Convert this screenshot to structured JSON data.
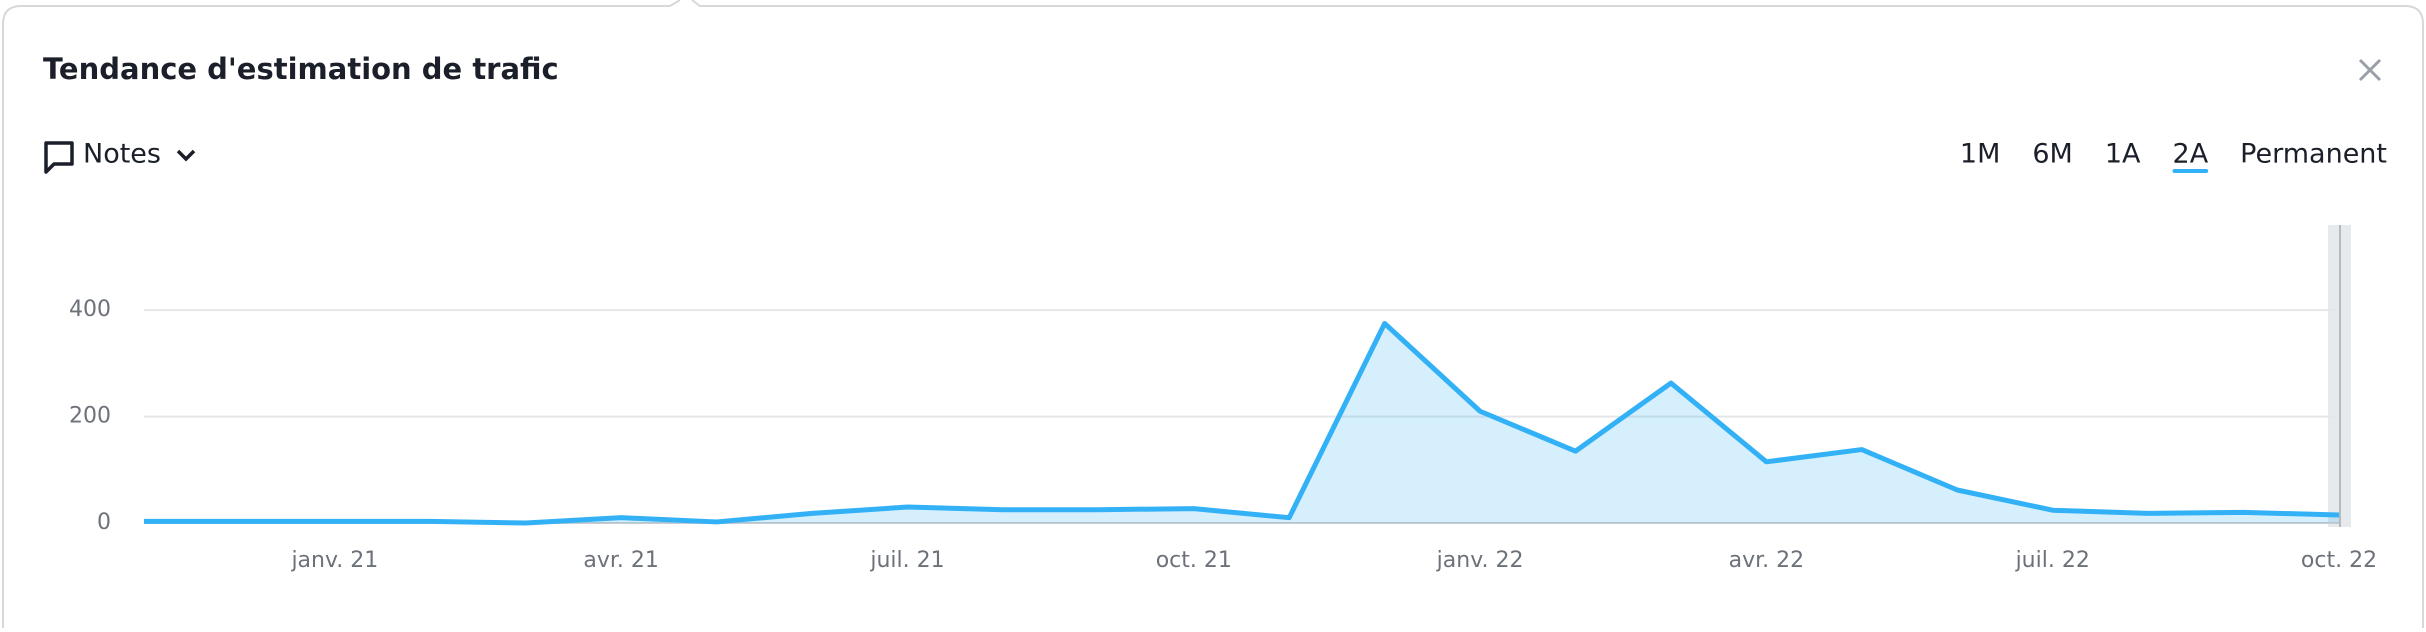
{
  "chart_data": {
    "type": "line",
    "title": "Tendance d'estimation de trafic",
    "x": [
      "2020-11",
      "2020-12",
      "2021-01",
      "2021-02",
      "2021-03",
      "2021-04",
      "2021-05",
      "2021-06",
      "2021-07",
      "2021-08",
      "2021-09",
      "2021-10",
      "2021-11",
      "2021-12",
      "2022-01",
      "2022-02",
      "2022-03",
      "2022-04",
      "2022-05",
      "2022-06",
      "2022-07",
      "2022-08",
      "2022-09",
      "2022-10"
    ],
    "series": [
      {
        "color": "#33b1f6",
        "values": [
          3,
          3,
          3,
          3,
          0,
          10,
          2,
          18,
          30,
          25,
          25,
          27,
          10,
          375,
          210,
          135,
          263,
          115,
          138,
          62,
          24,
          18,
          20,
          15
        ]
      }
    ],
    "ylim": [
      0,
      560
    ],
    "yticks": [
      0,
      200,
      400
    ],
    "grid": true,
    "xticks": [
      {
        "value": "2021-01",
        "label": "janv. 21"
      },
      {
        "value": "2021-04",
        "label": "avr. 21"
      },
      {
        "value": "2021-07",
        "label": "juil. 21"
      },
      {
        "value": "2021-10",
        "label": "oct. 21"
      },
      {
        "value": "2022-01",
        "label": "janv. 22"
      },
      {
        "value": "2022-04",
        "label": "avr. 22"
      },
      {
        "value": "2022-07",
        "label": "juil. 22"
      },
      {
        "value": "2022-10",
        "label": "oct. 22"
      }
    ]
  },
  "notes_button": "Notes",
  "periods": [
    "1M",
    "6M",
    "1A",
    "2A",
    "Permanent"
  ],
  "active_period": 3
}
